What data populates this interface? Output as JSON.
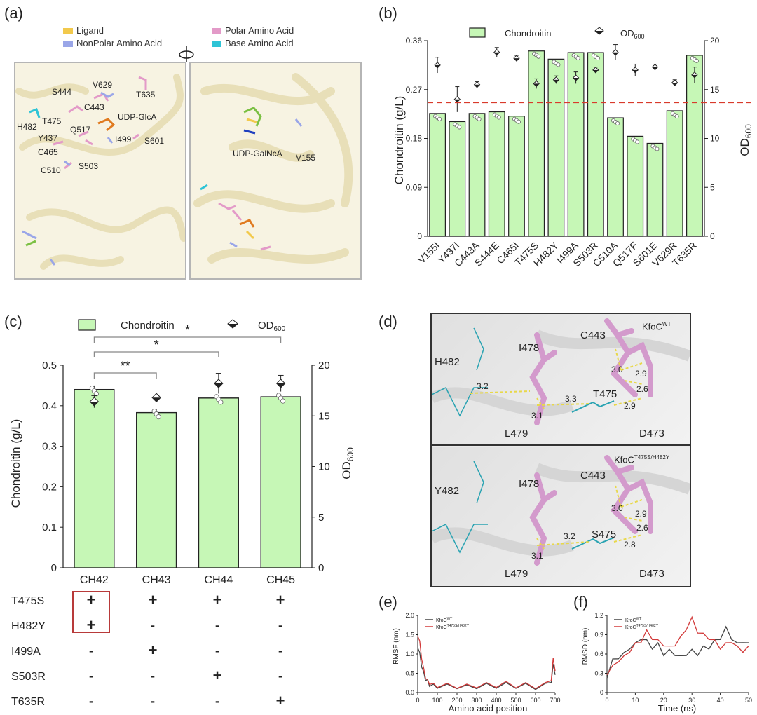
{
  "panel_labels": {
    "a": "(a)",
    "b": "(b)",
    "c": "(c)",
    "d": "(d)",
    "e": "(e)",
    "f": "(f)"
  },
  "panel_a": {
    "legend": [
      {
        "label": "Ligand",
        "color": "#f2c94c"
      },
      {
        "label": "NonPolar Amino Acid",
        "color": "#9aa6e8"
      },
      {
        "label": "Polar Amino Acid",
        "color": "#e39ac8"
      },
      {
        "label": "Base Amino Acid",
        "color": "#2ec4d6"
      }
    ],
    "left_residues": [
      "S444",
      "V629",
      "T635",
      "C443",
      "UDP-GlcA",
      "H482",
      "T475",
      "Q517",
      "Y437",
      "I499",
      "S601",
      "C465",
      "S503",
      "C510"
    ],
    "right_residues": [
      "UDP-GalNcA",
      "V155"
    ]
  },
  "panel_d": {
    "top": {
      "title_main": "KfoC",
      "title_sup": "WT",
      "residues": [
        "H482",
        "I478",
        "C443",
        "T475",
        "L479",
        "D473"
      ],
      "distances": [
        "3.2",
        "3.3",
        "3.1",
        "3.0",
        "2.9",
        "2.6",
        "2.9"
      ]
    },
    "bottom": {
      "title_main": "KfoC",
      "title_sup": "T475S/H482Y",
      "residues": [
        "Y482",
        "I478",
        "C443",
        "S475",
        "L479",
        "D473"
      ],
      "distances": [
        "3.2",
        "3.1",
        "3.0",
        "2.9",
        "2.6",
        "2.8"
      ]
    }
  },
  "table_c": {
    "rows": [
      {
        "label": "T475S",
        "marks": [
          "+",
          "+",
          "+",
          "+"
        ]
      },
      {
        "label": "H482Y",
        "marks": [
          "+",
          "-",
          "-",
          "-"
        ]
      },
      {
        "label": "I499A",
        "marks": [
          "-",
          "+",
          "-",
          "-"
        ]
      },
      {
        "label": "S503R",
        "marks": [
          "-",
          "-",
          "+",
          "-"
        ]
      },
      {
        "label": "T635R",
        "marks": [
          "-",
          "-",
          "-",
          "+"
        ]
      }
    ]
  },
  "chart_data": [
    {
      "id": "b",
      "type": "bar",
      "legend": {
        "bar": "Chondroitin",
        "marker_main": "OD",
        "marker_sub": "600"
      },
      "categories": [
        "V155I",
        "Y437I",
        "C443A",
        "S444E",
        "C465I",
        "T475S",
        "H482Y",
        "I499A",
        "S503R",
        "C510A",
        "Q517F",
        "S601E",
        "V629R",
        "T635R"
      ],
      "values": [
        0.226,
        0.211,
        0.226,
        0.229,
        0.221,
        0.341,
        0.326,
        0.338,
        0.338,
        0.218,
        0.184,
        0.171,
        0.231,
        0.333
      ],
      "od600": [
        17.5,
        14.0,
        15.5,
        18.8,
        18.2,
        15.6,
        16.0,
        16.2,
        17.0,
        18.8,
        17.0,
        17.3,
        15.7,
        16.5
      ],
      "od600_err": [
        0.8,
        1.3,
        0.3,
        0.5,
        0.3,
        0.5,
        0.4,
        0.6,
        0.3,
        0.8,
        0.6,
        0.3,
        0.3,
        0.8
      ],
      "threshold": 0.246,
      "ylabel": "Chondroitin (g/L)",
      "y2label_main": "OD",
      "y2label_sub": "600",
      "ylim": [
        0,
        0.36
      ],
      "yticks": [
        "0",
        "0.09",
        "0.18",
        "0.27",
        "0.36"
      ],
      "y2lim": [
        0,
        20
      ],
      "y2ticks": [
        "0",
        "5",
        "10",
        "15",
        "20"
      ]
    },
    {
      "id": "c",
      "type": "bar",
      "legend": {
        "bar": "Chondroitin",
        "marker_main": "OD",
        "marker_sub": "600"
      },
      "categories": [
        "CH42",
        "CH43",
        "CH44",
        "CH45"
      ],
      "values": [
        0.44,
        0.383,
        0.419,
        0.422
      ],
      "errors": [
        0.01,
        0.008,
        0.006,
        0.006
      ],
      "od600": [
        16.4,
        16.8,
        18.2,
        18.2
      ],
      "od600_err": [
        0.6,
        0.2,
        1.0,
        0.8
      ],
      "significance": [
        {
          "from": "CH42",
          "to": "CH43",
          "label": "**"
        },
        {
          "from": "CH42",
          "to": "CH44",
          "label": "*"
        },
        {
          "from": "CH42",
          "to": "CH45",
          "label": "*"
        }
      ],
      "ylabel": "Chondroitin (g/L)",
      "y2label_main": "OD",
      "y2label_sub": "600",
      "ylim": [
        0,
        0.5
      ],
      "yticks": [
        "0",
        "0.1",
        "0.2",
        "0.3",
        "0.4",
        "0.5"
      ],
      "y2lim": [
        0,
        20
      ],
      "y2ticks": [
        "0",
        "5",
        "10",
        "15",
        "20"
      ]
    },
    {
      "id": "e",
      "type": "line",
      "xlabel": "Amino acid position",
      "ylabel": "RMSF (nm)",
      "xlim": [
        0,
        700
      ],
      "ylim": [
        0,
        2.0
      ],
      "xticks": [
        "0",
        "100",
        "200",
        "300",
        "400",
        "500",
        "600",
        "700"
      ],
      "yticks": [
        "0.0",
        "0.5",
        "1.0",
        "1.5",
        "2.0"
      ],
      "series": [
        {
          "name_main": "KfoC",
          "name_sup": "WT",
          "color": "#444444",
          "x": [
            0,
            10,
            20,
            30,
            40,
            50,
            60,
            80,
            100,
            150,
            200,
            250,
            300,
            350,
            400,
            450,
            500,
            550,
            600,
            650,
            680,
            690,
            700
          ],
          "y": [
            1.2,
            1.0,
            0.7,
            0.5,
            0.35,
            0.3,
            0.2,
            0.18,
            0.15,
            0.18,
            0.14,
            0.16,
            0.14,
            0.2,
            0.15,
            0.22,
            0.15,
            0.2,
            0.12,
            0.2,
            0.3,
            0.7,
            0.5
          ]
        },
        {
          "name_main": "KfoC",
          "name_sup": "T475S/H482Y",
          "color": "#d23a3a",
          "x": [
            0,
            10,
            20,
            30,
            40,
            50,
            60,
            80,
            100,
            150,
            200,
            250,
            300,
            350,
            400,
            450,
            500,
            550,
            600,
            650,
            680,
            690,
            700
          ],
          "y": [
            1.5,
            1.3,
            0.9,
            0.6,
            0.4,
            0.3,
            0.25,
            0.2,
            0.17,
            0.2,
            0.15,
            0.18,
            0.16,
            0.22,
            0.17,
            0.25,
            0.16,
            0.22,
            0.14,
            0.22,
            0.35,
            0.85,
            0.6
          ]
        }
      ]
    },
    {
      "id": "f",
      "type": "line",
      "xlabel": "Time (ns)",
      "ylabel": "RMSD (nm)",
      "xlim": [
        0,
        50
      ],
      "ylim": [
        0,
        1.2
      ],
      "xticks": [
        "0",
        "10",
        "20",
        "30",
        "40",
        "50"
      ],
      "yticks": [
        "0",
        "0.3",
        "0.6",
        "0.9",
        "1.2"
      ],
      "series": [
        {
          "name_main": "KfoC",
          "name_sup": "WT",
          "color": "#444444",
          "x": [
            0,
            2,
            4,
            6,
            8,
            10,
            12,
            14,
            16,
            18,
            20,
            22,
            24,
            26,
            28,
            30,
            32,
            34,
            36,
            38,
            40,
            42,
            44,
            46,
            48,
            50
          ],
          "y": [
            0.25,
            0.5,
            0.55,
            0.6,
            0.7,
            0.75,
            0.85,
            0.8,
            0.7,
            0.75,
            0.6,
            0.65,
            0.6,
            0.55,
            0.6,
            0.65,
            0.6,
            0.7,
            0.7,
            0.8,
            0.85,
            1.0,
            0.85,
            0.75,
            0.8,
            0.75
          ]
        },
        {
          "name_main": "KfoC",
          "name_sup": "T475S/H482Y",
          "color": "#d23a3a",
          "x": [
            0,
            2,
            4,
            6,
            8,
            10,
            12,
            14,
            16,
            18,
            20,
            22,
            24,
            26,
            28,
            30,
            32,
            34,
            36,
            38,
            40,
            42,
            44,
            46,
            48,
            50
          ],
          "y": [
            0.3,
            0.4,
            0.5,
            0.55,
            0.65,
            0.75,
            0.8,
            0.95,
            0.85,
            0.8,
            0.75,
            0.7,
            0.75,
            0.85,
            1.0,
            1.15,
            0.95,
            0.9,
            0.85,
            0.8,
            0.7,
            0.75,
            0.8,
            0.7,
            0.65,
            0.7
          ]
        }
      ]
    }
  ]
}
